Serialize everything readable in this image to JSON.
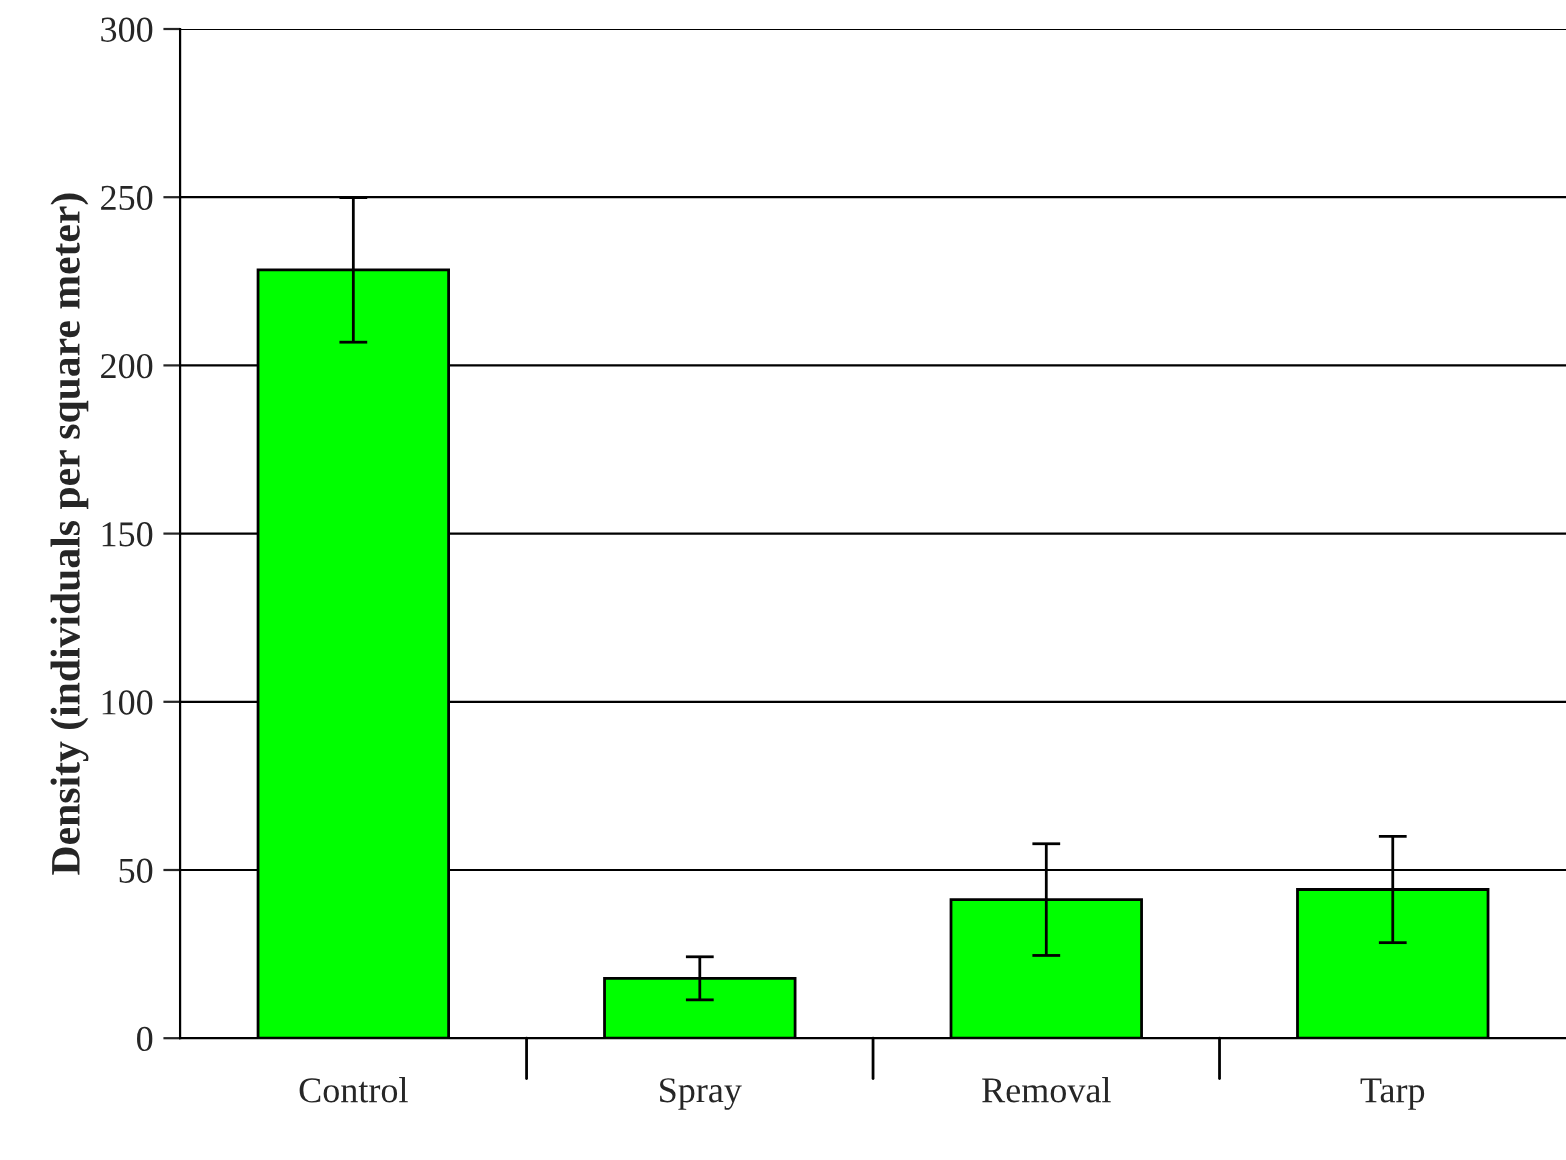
{
  "chart_data": {
    "type": "bar",
    "ylabel": "Density (individuals per square meter)",
    "categories": [
      "Control",
      "Spray",
      "Removal",
      "Tarp"
    ],
    "values": [
      228.4,
      17.8,
      41.2,
      44.2
    ],
    "errors": [
      21.5,
      6.4,
      16.6,
      15.8
    ],
    "color": "#00ff00",
    "ylim": [
      0,
      300
    ],
    "yticks": [
      0,
      50,
      100,
      150,
      200,
      250,
      300
    ],
    "grid": "y"
  }
}
